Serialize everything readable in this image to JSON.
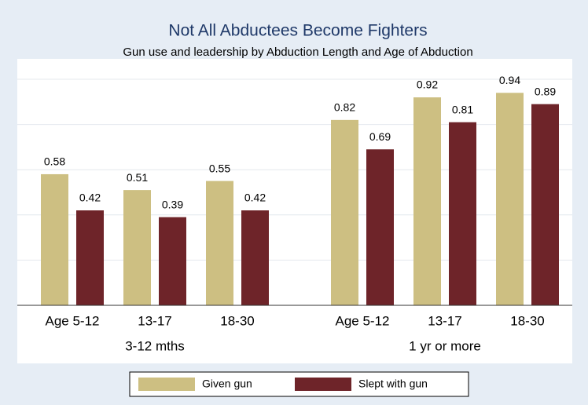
{
  "chart_data": {
    "type": "bar",
    "title": "Not All Abductees Become Fighters",
    "subtitle": "Gun use and leadership by Abduction Length and Age of Abduction",
    "groups": [
      {
        "name": "3-12 mths",
        "categories": [
          "Age 5-12",
          "13-17",
          "18-30"
        ]
      },
      {
        "name": "1 yr or more",
        "categories": [
          "Age 5-12",
          "13-17",
          "18-30"
        ]
      }
    ],
    "series": [
      {
        "name": "Given gun",
        "color": "#cdbf82",
        "values": [
          0.58,
          0.51,
          0.55,
          0.82,
          0.92,
          0.94
        ]
      },
      {
        "name": "Slept with gun",
        "color": "#6e2429",
        "values": [
          0.42,
          0.39,
          0.42,
          0.69,
          0.81,
          0.89
        ]
      }
    ],
    "ylim": [
      0,
      1
    ],
    "yticks": [
      0,
      0.2,
      0.4,
      0.6,
      0.8,
      1
    ],
    "grid": true,
    "legend": "bottom"
  }
}
